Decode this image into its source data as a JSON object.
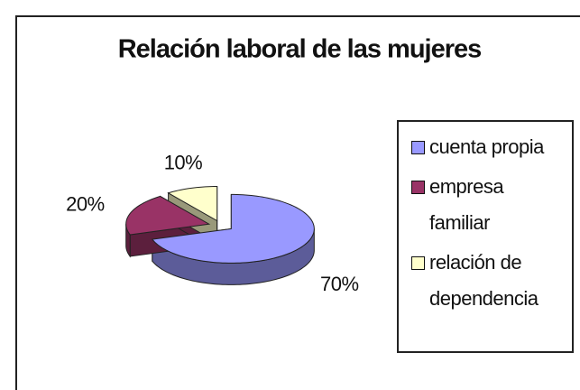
{
  "chart_data": {
    "type": "pie",
    "title": "Relación laboral de las mujeres",
    "categories": [
      "cuenta propia",
      "empresa familiar",
      "relación de dependencia"
    ],
    "values": [
      70,
      20,
      10
    ],
    "value_labels": [
      "70%",
      "20%",
      "10%"
    ],
    "colors": [
      "#9999ff",
      "#993366",
      "#ffffcc"
    ],
    "legend": "right",
    "three_d": true,
    "exploded": true
  }
}
